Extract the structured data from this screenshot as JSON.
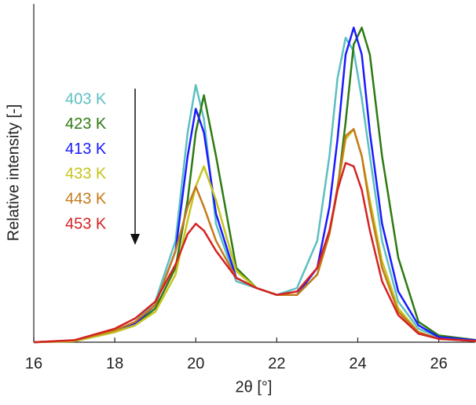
{
  "chart_data": {
    "type": "line",
    "xlabel": "2θ [°]",
    "ylabel": "Relative intensity [-]",
    "x": [
      16,
      17,
      18,
      18.5,
      19,
      19.5,
      19.8,
      20,
      20.2,
      20.5,
      21,
      21.5,
      22,
      22.5,
      23,
      23.3,
      23.5,
      23.7,
      23.9,
      24.1,
      24.3,
      24.6,
      25,
      25.5,
      26,
      27
    ],
    "xlim": [
      16,
      26.9
    ],
    "xticks": [
      16,
      18,
      20,
      22,
      24,
      26
    ],
    "ylim": [
      0,
      100
    ],
    "legend": "left",
    "series": [
      {
        "name": "403 K",
        "color": "#5cbfc2",
        "values": [
          0,
          0.5,
          3.5,
          6,
          12,
          30,
          62,
          76,
          66,
          35,
          18,
          16,
          14,
          16,
          30,
          55,
          78,
          90,
          86,
          72,
          55,
          30,
          12,
          4,
          1.5,
          0.5
        ]
      },
      {
        "name": "423 K",
        "color": "#2e7a12",
        "values": [
          0,
          0.3,
          3,
          5,
          10,
          22,
          42,
          62,
          73,
          55,
          22,
          16,
          14,
          14,
          20,
          32,
          45,
          65,
          88,
          93,
          85,
          55,
          25,
          6,
          2,
          0.5
        ]
      },
      {
        "name": "413 K",
        "color": "#1a1aff",
        "values": [
          0,
          0.4,
          3.3,
          5.5,
          11,
          27,
          55,
          69,
          62,
          38,
          19,
          16,
          14,
          14,
          22,
          40,
          60,
          85,
          93,
          85,
          62,
          35,
          15,
          5,
          1.5,
          0.5
        ]
      },
      {
        "name": "433 K",
        "color": "#c6c41c",
        "values": [
          0,
          0.3,
          3,
          5,
          9,
          20,
          36,
          46,
          52,
          42,
          21,
          16,
          14,
          14,
          20,
          32,
          45,
          60,
          63,
          55,
          42,
          24,
          10,
          3,
          1,
          0.3
        ]
      },
      {
        "name": "443 K",
        "color": "#c57a1c",
        "values": [
          0,
          0.5,
          3.5,
          6,
          11,
          27,
          40,
          46,
          40,
          30,
          19,
          16,
          14,
          14,
          20,
          32,
          46,
          61,
          63,
          55,
          40,
          22,
          9,
          3,
          1,
          0.3
        ]
      },
      {
        "name": "453 K",
        "color": "#d42222",
        "values": [
          0,
          0.6,
          4,
          7,
          12,
          23,
          32,
          35,
          33,
          27,
          19,
          16,
          14,
          15,
          22,
          33,
          45,
          53,
          52,
          45,
          33,
          18,
          8,
          2.5,
          1,
          0.3
        ]
      }
    ]
  }
}
